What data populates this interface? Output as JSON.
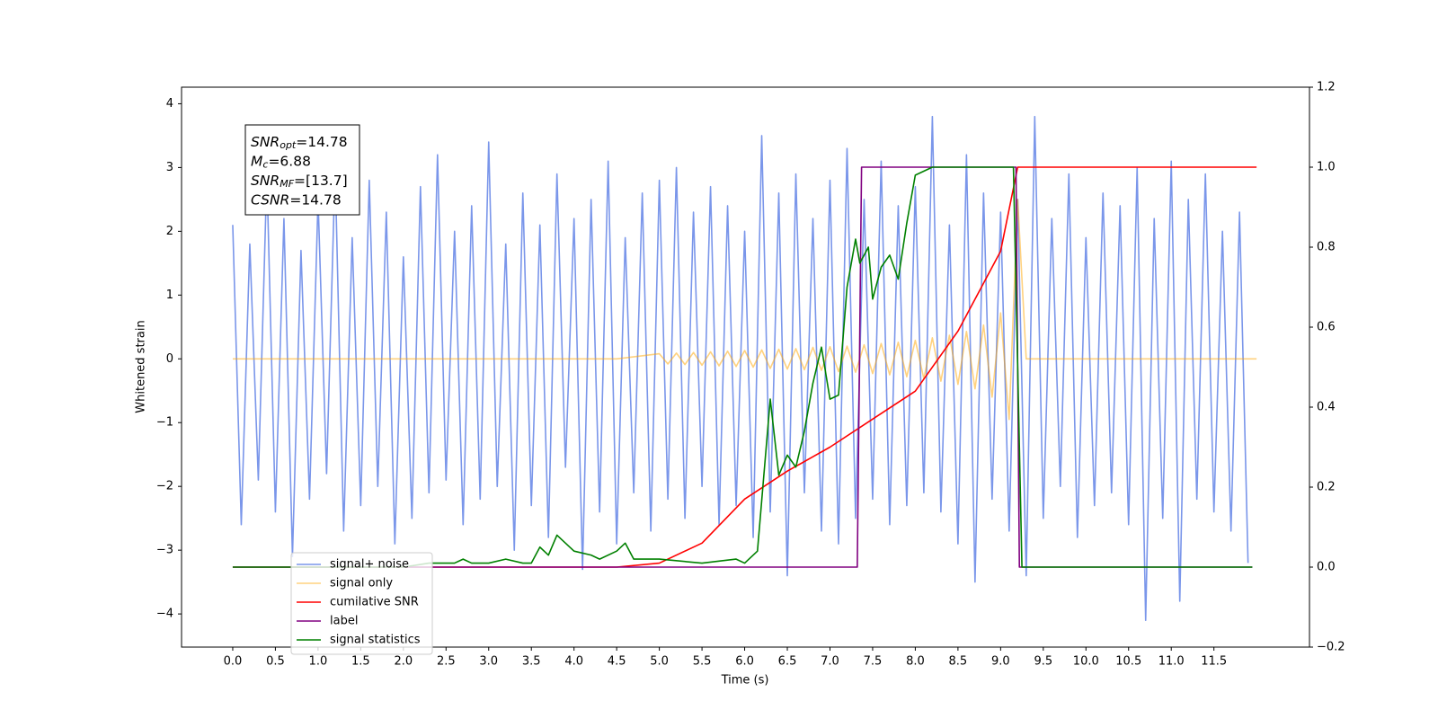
{
  "chart_data": {
    "type": "line",
    "xlabel": "Time (s)",
    "ylabel": "Whitened strain",
    "xlim": [
      -0.6,
      12.62
    ],
    "ylim": [
      -4.52,
      4.26
    ],
    "y2lim": [
      -0.2,
      1.2
    ],
    "xticks": [
      {
        "value": 0,
        "label": "0.0"
      },
      0.5,
      {
        "value": 1,
        "label": "1.0"
      },
      1.5,
      {
        "value": 2,
        "label": "2.0"
      },
      2.5,
      {
        "value": 3,
        "label": "3.0"
      },
      3.5,
      {
        "value": 4,
        "label": "4.0"
      },
      4.5,
      {
        "value": 5,
        "label": "5.0"
      },
      5.5,
      {
        "value": 6,
        "label": "6.0"
      },
      6.5,
      {
        "value": 7,
        "label": "7.0"
      },
      7.5,
      {
        "value": 8,
        "label": "8.0"
      },
      8.5,
      {
        "value": 9,
        "label": "9.0"
      },
      9.5,
      {
        "value": 10,
        "label": "10.0"
      },
      10.5,
      {
        "value": 11,
        "label": "11.0"
      },
      11.5
    ],
    "yticks": [
      {
        "value": -4,
        "label": "−4"
      },
      {
        "value": -3,
        "label": "−3"
      },
      {
        "value": -2,
        "label": "−2"
      },
      {
        "value": -1,
        "label": "−1"
      },
      0,
      1,
      2,
      3,
      4
    ],
    "y2ticks": [
      {
        "value": -0.2,
        "label": "−0.2"
      },
      {
        "value": 0,
        "label": "0.0"
      },
      0.2,
      0.4,
      0.6,
      0.8,
      {
        "value": 1,
        "label": "1.0"
      },
      1.2
    ],
    "legend": "lower left",
    "annotation_box": [
      {
        "symbol": "SNR",
        "subscript": "opt",
        "text": "=14.78"
      },
      {
        "symbol": "M",
        "subscript": "c",
        "text": "=6.88"
      },
      {
        "symbol": "SNR",
        "subscript": "MF",
        "text": "=[13.7]"
      },
      {
        "symbol": "CSNR",
        "text": "=14.78"
      }
    ],
    "series": [
      {
        "name": "signal+ noise",
        "color": "#4169e1",
        "alpha": 0.7,
        "axis": "y",
        "x": [
          0,
          0.1,
          0.2,
          0.3,
          0.4,
          0.5,
          0.6,
          0.7,
          0.8,
          0.9,
          1,
          1.1,
          1.2,
          1.3,
          1.4,
          1.5,
          1.6,
          1.7,
          1.8,
          1.9,
          2,
          2.1,
          2.2,
          2.3,
          2.4,
          2.5,
          2.6,
          2.7,
          2.8,
          2.9,
          3,
          3.1,
          3.2,
          3.3,
          3.4,
          3.5,
          3.6,
          3.7,
          3.8,
          3.9,
          4,
          4.1,
          4.2,
          4.3,
          4.4,
          4.5,
          4.6,
          4.7,
          4.8,
          4.9,
          5,
          5.1,
          5.2,
          5.3,
          5.4,
          5.5,
          5.6,
          5.7,
          5.8,
          5.9,
          6,
          6.1,
          6.2,
          6.3,
          6.4,
          6.5,
          6.6,
          6.7,
          6.8,
          6.9,
          7,
          7.1,
          7.2,
          7.3,
          7.4,
          7.5,
          7.6,
          7.7,
          7.8,
          7.9,
          8,
          8.1,
          8.2,
          8.3,
          8.4,
          8.5,
          8.6,
          8.7,
          8.8,
          8.9,
          9,
          9.1,
          9.2,
          9.3,
          9.4,
          9.5,
          9.6,
          9.7,
          9.8,
          9.9,
          10,
          10.1,
          10.2,
          10.3,
          10.4,
          10.5,
          10.6,
          10.7,
          10.8,
          10.9,
          11,
          11.1,
          11.2,
          11.3,
          11.4,
          11.5,
          11.6,
          11.7,
          11.8,
          11.9
        ],
        "values": [
          2.1,
          -2.6,
          1.8,
          -1.9,
          2.9,
          -2.4,
          2.2,
          -3.1,
          1.7,
          -2.2,
          2.5,
          -1.8,
          3.0,
          -2.7,
          1.9,
          -2.3,
          2.8,
          -2.0,
          2.3,
          -2.9,
          1.6,
          -2.5,
          2.7,
          -2.1,
          3.2,
          -1.9,
          2.0,
          -2.6,
          2.4,
          -2.2,
          3.4,
          -2.0,
          1.8,
          -3.0,
          2.6,
          -2.3,
          2.1,
          -2.8,
          2.9,
          -1.7,
          2.2,
          -3.3,
          2.5,
          -2.4,
          3.1,
          -2.9,
          1.9,
          -2.1,
          2.6,
          -2.7,
          2.8,
          -2.2,
          3.0,
          -2.5,
          2.3,
          -2.0,
          2.7,
          -2.6,
          2.4,
          -2.3,
          2.0,
          -2.8,
          3.5,
          -2.4,
          2.6,
          -3.4,
          2.9,
          -2.1,
          2.2,
          -2.7,
          2.8,
          -2.9,
          3.3,
          -2.5,
          2.5,
          -2.2,
          3.1,
          -2.6,
          2.4,
          -2.3,
          2.7,
          -2.1,
          3.8,
          -2.4,
          2.1,
          -2.9,
          3.2,
          -3.5,
          2.6,
          -2.2,
          2.3,
          -2.7,
          2.5,
          -3.4,
          3.8,
          -2.5,
          2.2,
          -2.0,
          2.9,
          -2.8,
          1.9,
          -2.3,
          2.6,
          -2.1,
          2.4,
          -2.6,
          3.0,
          -4.1,
          2.2,
          -2.5,
          3.1,
          -3.8,
          2.5,
          -2.2,
          2.9,
          -2.4,
          2.0,
          -2.7,
          2.3,
          -3.2
        ]
      },
      {
        "name": "signal only",
        "color": "#ffa500",
        "alpha": 0.5,
        "axis": "y",
        "x": [
          0,
          4.5,
          5,
          5.1,
          5.2,
          5.3,
          5.4,
          5.5,
          5.6,
          5.7,
          5.8,
          5.9,
          6,
          6.1,
          6.2,
          6.3,
          6.4,
          6.5,
          6.6,
          6.7,
          6.8,
          6.9,
          7,
          7.1,
          7.2,
          7.3,
          7.4,
          7.5,
          7.6,
          7.7,
          7.8,
          7.9,
          8,
          8.1,
          8.2,
          8.3,
          8.4,
          8.5,
          8.6,
          8.7,
          8.8,
          8.9,
          9,
          9.1,
          9.2,
          9.3,
          12
        ],
        "values": [
          0,
          0,
          0.08,
          -0.08,
          0.09,
          -0.09,
          0.1,
          -0.1,
          0.11,
          -0.11,
          0.12,
          -0.12,
          0.13,
          -0.13,
          0.14,
          -0.15,
          0.15,
          -0.16,
          0.16,
          -0.17,
          0.18,
          -0.18,
          0.19,
          -0.2,
          0.2,
          -0.21,
          0.22,
          -0.23,
          0.24,
          -0.25,
          0.26,
          -0.28,
          0.29,
          -0.31,
          0.33,
          -0.35,
          0.37,
          -0.4,
          0.43,
          -0.47,
          0.53,
          -0.6,
          0.72,
          -0.95,
          2.5,
          0,
          0
        ]
      },
      {
        "name": "cumilative SNR",
        "color": "#ff0000",
        "alpha": 1,
        "axis": "y2",
        "x": [
          0,
          4.5,
          5,
          5.5,
          6,
          6.5,
          7,
          7.5,
          8,
          8.5,
          9,
          9.2,
          12
        ],
        "values": [
          0,
          0,
          0.01,
          0.06,
          0.17,
          0.24,
          0.3,
          0.37,
          0.44,
          0.59,
          0.79,
          1.0,
          1.0
        ]
      },
      {
        "name": "label",
        "color": "#800080",
        "alpha": 1,
        "axis": "y2",
        "x": [
          0,
          7.32,
          7.37,
          9.18,
          9.22,
          11.95
        ],
        "values": [
          0,
          0,
          1,
          1,
          0,
          0
        ]
      },
      {
        "name": "signal statistics",
        "color": "#008000",
        "alpha": 1,
        "axis": "y2",
        "x": [
          0,
          2,
          2.3,
          2.6,
          2.7,
          2.8,
          3,
          3.2,
          3.4,
          3.5,
          3.6,
          3.7,
          3.8,
          3.9,
          4,
          4.2,
          4.3,
          4.5,
          4.6,
          4.7,
          5,
          5.5,
          5.9,
          6,
          6.15,
          6.3,
          6.4,
          6.5,
          6.6,
          6.7,
          6.8,
          6.9,
          7,
          7.1,
          7.2,
          7.3,
          7.35,
          7.45,
          7.5,
          7.6,
          7.7,
          7.8,
          7.9,
          8,
          8.2,
          8.5,
          9,
          9.15,
          9.25,
          11.95
        ],
        "values": [
          0,
          0,
          0.01,
          0.01,
          0.02,
          0.01,
          0.01,
          0.02,
          0.01,
          0.01,
          0.05,
          0.03,
          0.08,
          0.06,
          0.04,
          0.03,
          0.02,
          0.04,
          0.06,
          0.02,
          0.02,
          0.01,
          0.02,
          0.01,
          0.04,
          0.42,
          0.23,
          0.28,
          0.25,
          0.34,
          0.46,
          0.55,
          0.42,
          0.43,
          0.7,
          0.82,
          0.76,
          0.8,
          0.67,
          0.75,
          0.78,
          0.72,
          0.86,
          0.98,
          1.0,
          1.0,
          1.0,
          1.0,
          0,
          0
        ]
      }
    ]
  }
}
